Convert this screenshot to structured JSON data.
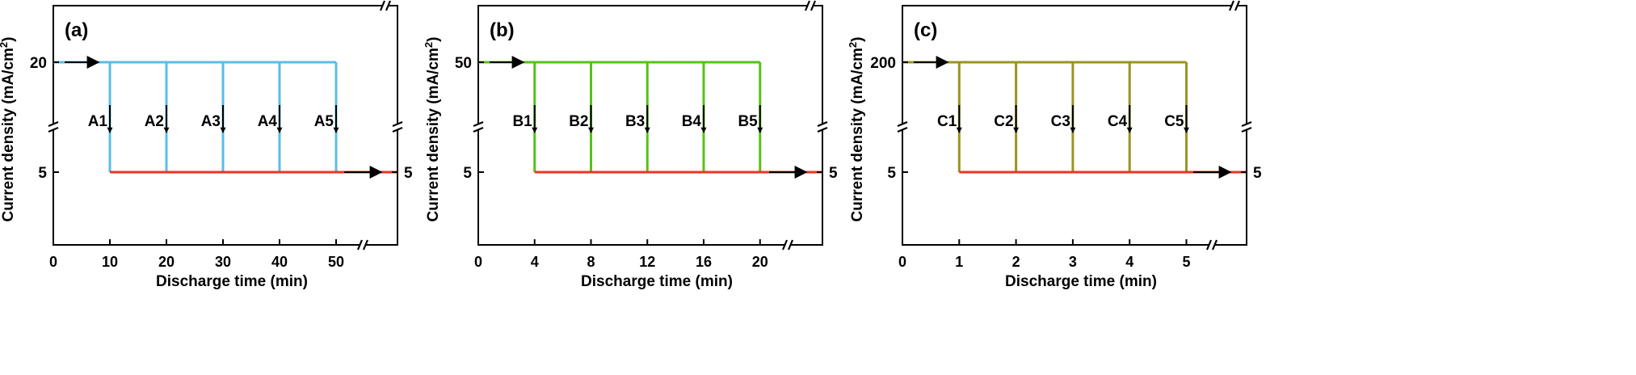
{
  "figure": {
    "ylabel_text": "Current density (mA/cm",
    "ylabel_sup": "2",
    "ylabel_close": ")"
  },
  "colors": {
    "blue": "#5bbce6",
    "green": "#55c21a",
    "olive": "#9a9421",
    "red": "#ee3322",
    "axis": "#000000"
  },
  "chart_data": [
    {
      "type": "line",
      "panel_label": "(a)",
      "xlabel": "Discharge time (min)",
      "ylabel": "Current density (mA/cm2)",
      "x_ticks": [
        "0",
        "10",
        "20",
        "30",
        "40",
        "50"
      ],
      "x_tick_values": [
        0,
        10,
        20,
        30,
        40,
        50
      ],
      "y_ticks": [
        "20",
        "5"
      ],
      "y_tick_values": [
        20,
        5
      ],
      "right_label": "5",
      "x_axis_broken": true,
      "y_axis_broken": true,
      "high_current": 20,
      "low_current": 5,
      "switch_times": [
        10,
        20,
        30,
        40,
        50
      ],
      "switch_labels": [
        "A1",
        "A2",
        "A3",
        "A4",
        "A5"
      ],
      "high_color": "blue",
      "low_color": "red"
    },
    {
      "type": "line",
      "panel_label": "(b)",
      "xlabel": "Discharge time (min)",
      "ylabel": "Current density (mA/cm2)",
      "x_ticks": [
        "0",
        "4",
        "8",
        "12",
        "16",
        "20"
      ],
      "x_tick_values": [
        0,
        4,
        8,
        12,
        16,
        20
      ],
      "y_ticks": [
        "50",
        "5"
      ],
      "y_tick_values": [
        50,
        5
      ],
      "right_label": "5",
      "x_axis_broken": true,
      "y_axis_broken": true,
      "high_current": 50,
      "low_current": 5,
      "switch_times": [
        4,
        8,
        12,
        16,
        20
      ],
      "switch_labels": [
        "B1",
        "B2",
        "B3",
        "B4",
        "B5"
      ],
      "high_color": "green",
      "low_color": "red"
    },
    {
      "type": "line",
      "panel_label": "(c)",
      "xlabel": "Discharge time (min)",
      "ylabel": "Current density (mA/cm2)",
      "x_ticks": [
        "0",
        "1",
        "2",
        "3",
        "4",
        "5"
      ],
      "x_tick_values": [
        0,
        1,
        2,
        3,
        4,
        5
      ],
      "y_ticks": [
        "200",
        "5"
      ],
      "y_tick_values": [
        200,
        5
      ],
      "right_label": "5",
      "x_axis_broken": true,
      "y_axis_broken": true,
      "high_current": 200,
      "low_current": 5,
      "switch_times": [
        1,
        2,
        3,
        4,
        5
      ],
      "switch_labels": [
        "C1",
        "C2",
        "C3",
        "C4",
        "C5"
      ],
      "high_color": "olive",
      "low_color": "red"
    }
  ]
}
